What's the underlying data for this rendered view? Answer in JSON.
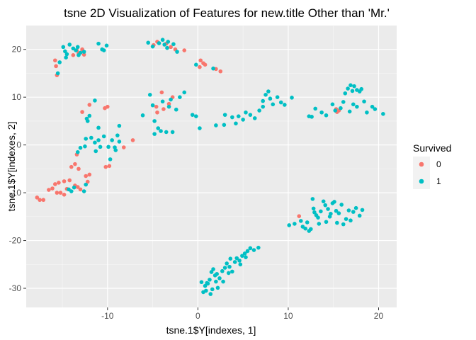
{
  "chart_data": {
    "type": "scatter",
    "title": "tsne 2D Visualization of Features for new.title Other than 'Mr.'",
    "xlabel": "tsne.1$Y[indexes, 1]",
    "ylabel": "tsne.1$Y[indexes, 2]",
    "xlim": [
      -19,
      22
    ],
    "ylim": [
      -34,
      25
    ],
    "x_ticks": [
      -10,
      0,
      10,
      20
    ],
    "x_tick_labels": [
      "-10",
      "0",
      "10",
      "20"
    ],
    "y_ticks": [
      -30,
      -20,
      -10,
      0,
      10,
      20
    ],
    "y_tick_labels": [
      "-30",
      "-20",
      "-10",
      "0",
      "10",
      "20"
    ],
    "grid": true,
    "legend": {
      "title": "Survived",
      "position": "right",
      "entries": [
        {
          "label": "0",
          "color": "#F8766D"
        },
        {
          "label": "1",
          "color": "#00BFC4"
        }
      ]
    },
    "series": [
      {
        "name": "0",
        "color": "#F8766D",
        "points": [
          [
            -15.8,
            17.7
          ],
          [
            -15.7,
            16.5
          ],
          [
            -15.6,
            14.6
          ],
          [
            -13.4,
            19.8
          ],
          [
            -13.2,
            19.2
          ],
          [
            -12.8,
            20.0
          ],
          [
            -12.6,
            18.9
          ],
          [
            -13.8,
            18.8
          ],
          [
            -4.5,
            21.6
          ],
          [
            -3.5,
            21.2
          ],
          [
            -3.0,
            20.5
          ],
          [
            -4.9,
            20.9
          ],
          [
            -2.5,
            20.0
          ],
          [
            -1.5,
            19.8
          ],
          [
            0.3,
            17.7
          ],
          [
            0.6,
            17.1
          ],
          [
            0.8,
            16.8
          ],
          [
            0.2,
            16.3
          ],
          [
            2.0,
            15.9
          ],
          [
            2.5,
            15.4
          ],
          [
            -12.0,
            8.4
          ],
          [
            -12.8,
            6.9
          ],
          [
            -10.0,
            8.0
          ],
          [
            -10.3,
            7.7
          ],
          [
            -4.0,
            11.0
          ],
          [
            -3.2,
            8.6
          ],
          [
            -4.6,
            8.0
          ],
          [
            -3.8,
            7.5
          ],
          [
            -4.5,
            6.8
          ],
          [
            -2.8,
            10.0
          ],
          [
            -7.2,
            1.0
          ],
          [
            -8.2,
            -0.5
          ],
          [
            -9.8,
            -4.4
          ],
          [
            -10.2,
            -4.6
          ],
          [
            -13.4,
            -2.0
          ],
          [
            -13.6,
            -4.0
          ],
          [
            -14.0,
            -4.6
          ],
          [
            -13.2,
            -5.0
          ],
          [
            -17.8,
            -11.0
          ],
          [
            -17.5,
            -11.5
          ],
          [
            -17.1,
            -11.5
          ],
          [
            -16.5,
            -9.4
          ],
          [
            -16.1,
            -9.1
          ],
          [
            -15.8,
            -8.2
          ],
          [
            -15.4,
            -7.9
          ],
          [
            -15.2,
            -10.0
          ],
          [
            -14.8,
            -10.4
          ],
          [
            -14.5,
            -9.2
          ],
          [
            -14.8,
            -7.6
          ],
          [
            -14.2,
            -7.4
          ],
          [
            -13.6,
            -8.5
          ],
          [
            -13.3,
            -8.8
          ],
          [
            -13.0,
            -9.3
          ],
          [
            -12.4,
            -6.5
          ],
          [
            -12.2,
            -7.7
          ],
          [
            -12.0,
            -6.2
          ],
          [
            -15.6,
            -10.0
          ],
          [
            11.2,
            -14.9
          ],
          [
            15.3,
            7.5
          ],
          [
            15.6,
            7.2
          ],
          [
            15.4,
            6.9
          ]
        ]
      },
      {
        "name": "1",
        "color": "#00BFC4",
        "points": [
          [
            -15.5,
            15.0
          ],
          [
            -15.3,
            17.3
          ],
          [
            -14.9,
            20.5
          ],
          [
            -14.7,
            19.6
          ],
          [
            -14.5,
            19.0
          ],
          [
            -14.2,
            21.0
          ],
          [
            -13.8,
            20.2
          ],
          [
            -13.5,
            19.8
          ],
          [
            -13.3,
            20.5
          ],
          [
            -13.0,
            19.3
          ],
          [
            -12.6,
            19.5
          ],
          [
            -13.2,
            18.8
          ],
          [
            -11.0,
            21.2
          ],
          [
            -10.6,
            20.0
          ],
          [
            -10.4,
            19.8
          ],
          [
            -10.1,
            20.8
          ],
          [
            -14.6,
            18.3
          ],
          [
            -5.5,
            21.4
          ],
          [
            -5.0,
            20.6
          ],
          [
            -4.3,
            21.3
          ],
          [
            -3.9,
            22.0
          ],
          [
            -3.7,
            21.0
          ],
          [
            -3.3,
            21.6
          ],
          [
            -2.7,
            21.1
          ],
          [
            -2.3,
            19.5
          ],
          [
            -3.4,
            20.3
          ],
          [
            1.7,
            16.0
          ],
          [
            -0.2,
            16.8
          ],
          [
            -12.2,
            5.0
          ],
          [
            -12.3,
            5.5
          ],
          [
            -12.0,
            6.1
          ],
          [
            -11.4,
            9.3
          ],
          [
            -11.0,
            3.6
          ],
          [
            -12.4,
            1.3
          ],
          [
            -11.8,
            1.5
          ],
          [
            -11.4,
            0.5
          ],
          [
            -11.0,
            1.0
          ],
          [
            -12.5,
            -0.3
          ],
          [
            -13.0,
            -0.6
          ],
          [
            -13.3,
            -1.5
          ],
          [
            -11.3,
            -1.3
          ],
          [
            -10.8,
            -0.4
          ],
          [
            -9.5,
            1.0
          ],
          [
            -9.9,
            -0.4
          ],
          [
            -9.2,
            -0.5
          ],
          [
            -8.7,
            0.7
          ],
          [
            -9.1,
            -1.1
          ],
          [
            -10.4,
            1.8
          ],
          [
            -9.7,
            -3.0
          ],
          [
            -8.9,
            2.0
          ],
          [
            -8.7,
            4.0
          ],
          [
            -14.3,
            -9.3
          ],
          [
            -13.7,
            -8.9
          ],
          [
            -12.4,
            -8.3
          ],
          [
            -12.6,
            -9.7
          ],
          [
            -14.0,
            -9.7
          ],
          [
            -6.1,
            6.2
          ],
          [
            -5.3,
            10.5
          ],
          [
            -5.0,
            8.3
          ],
          [
            -4.8,
            5.0
          ],
          [
            -4.4,
            3.5
          ],
          [
            -4.8,
            2.3
          ],
          [
            -4.1,
            2.9
          ],
          [
            -3.5,
            2.7
          ],
          [
            -2.8,
            2.7
          ],
          [
            -3.9,
            9.1
          ],
          [
            -3.2,
            8.0
          ],
          [
            -3.0,
            9.5
          ],
          [
            -2.0,
            10.0
          ],
          [
            -1.5,
            11.0
          ],
          [
            -2.4,
            7.4
          ],
          [
            -0.6,
            6.3
          ],
          [
            -0.2,
            6.0
          ],
          [
            0.2,
            3.5
          ],
          [
            2.0,
            4.1
          ],
          [
            2.9,
            4.2
          ],
          [
            3.0,
            6.3
          ],
          [
            3.8,
            5.8
          ],
          [
            4.5,
            6.0
          ],
          [
            4.2,
            4.5
          ],
          [
            5.0,
            5.3
          ],
          [
            5.3,
            6.8
          ],
          [
            5.8,
            6.3
          ],
          [
            6.3,
            5.6
          ],
          [
            6.8,
            7.2
          ],
          [
            7.2,
            9.2
          ],
          [
            7.5,
            10.5
          ],
          [
            7.8,
            11.2
          ],
          [
            8.0,
            9.7
          ],
          [
            8.3,
            8.5
          ],
          [
            8.8,
            10.0
          ],
          [
            9.2,
            8.9
          ],
          [
            9.6,
            8.4
          ],
          [
            10.4,
            9.9
          ],
          [
            7.2,
            8.0
          ],
          [
            12.3,
            6.0
          ],
          [
            12.6,
            5.9
          ],
          [
            13.0,
            7.6
          ],
          [
            13.7,
            6.8
          ],
          [
            14.2,
            6.2
          ],
          [
            14.9,
            8.5
          ],
          [
            15.2,
            7.2
          ],
          [
            15.8,
            7.7
          ],
          [
            16.1,
            9.0
          ],
          [
            16.3,
            10.8
          ],
          [
            16.6,
            11.8
          ],
          [
            16.9,
            12.5
          ],
          [
            17.1,
            11.3
          ],
          [
            17.3,
            12.3
          ],
          [
            17.6,
            11.5
          ],
          [
            17.9,
            11.2
          ],
          [
            18.1,
            11.7
          ],
          [
            17.2,
            8.5
          ],
          [
            17.6,
            8.0
          ],
          [
            18.4,
            9.1
          ],
          [
            18.7,
            6.8
          ],
          [
            19.3,
            8.0
          ],
          [
            19.6,
            7.5
          ],
          [
            20.5,
            6.5
          ],
          [
            16.8,
            7.0
          ],
          [
            10.1,
            -16.8
          ],
          [
            10.7,
            -16.5
          ],
          [
            11.4,
            -15.9
          ],
          [
            11.6,
            -17.1
          ],
          [
            11.9,
            -17.5
          ],
          [
            12.1,
            -16.2
          ],
          [
            12.3,
            -18.0
          ],
          [
            12.5,
            -17.6
          ],
          [
            12.8,
            -13.3
          ],
          [
            12.7,
            -11.3
          ],
          [
            13.1,
            -14.7
          ],
          [
            13.3,
            -15.2
          ],
          [
            13.6,
            -13.9
          ],
          [
            13.9,
            -11.8
          ],
          [
            14.1,
            -12.6
          ],
          [
            14.4,
            -13.4
          ],
          [
            14.6,
            -15.0
          ],
          [
            14.9,
            -12.2
          ],
          [
            15.1,
            -11.9
          ],
          [
            15.3,
            -13.8
          ],
          [
            15.6,
            -14.3
          ],
          [
            15.9,
            -12.5
          ],
          [
            16.1,
            -16.6
          ],
          [
            16.4,
            -15.5
          ],
          [
            16.7,
            -13.7
          ],
          [
            16.9,
            -15.8
          ],
          [
            17.2,
            -14.0
          ],
          [
            17.5,
            -13.2
          ],
          [
            17.9,
            -14.8
          ],
          [
            18.2,
            -13.6
          ],
          [
            15.4,
            -16.3
          ],
          [
            14.2,
            -16.1
          ],
          [
            13.4,
            -16.5
          ],
          [
            12.9,
            -14.1
          ],
          [
            14.7,
            -14.4
          ],
          [
            0.4,
            -28.7
          ],
          [
            0.6,
            -30.8
          ],
          [
            0.9,
            -30.5
          ],
          [
            1.1,
            -29.0
          ],
          [
            1.3,
            -28.2
          ],
          [
            1.5,
            -26.6
          ],
          [
            1.7,
            -26.0
          ],
          [
            1.9,
            -27.3
          ],
          [
            2.0,
            -28.6
          ],
          [
            2.2,
            -29.9
          ],
          [
            2.4,
            -27.9
          ],
          [
            2.7,
            -26.4
          ],
          [
            3.0,
            -25.7
          ],
          [
            3.2,
            -24.8
          ],
          [
            3.5,
            -25.5
          ],
          [
            3.8,
            -26.5
          ],
          [
            4.1,
            -24.5
          ],
          [
            4.3,
            -23.7
          ],
          [
            4.6,
            -24.2
          ],
          [
            4.9,
            -23.2
          ],
          [
            5.2,
            -22.7
          ],
          [
            5.5,
            -22.2
          ],
          [
            5.8,
            -21.6
          ],
          [
            6.2,
            -22.0
          ],
          [
            6.7,
            -21.5
          ],
          [
            1.4,
            -31.2
          ],
          [
            1.6,
            -30.2
          ],
          [
            2.1,
            -27.0
          ],
          [
            4.7,
            -25.0
          ],
          [
            3.6,
            -23.8
          ],
          [
            2.8,
            -28.6
          ],
          [
            1.0,
            -28.9
          ],
          [
            0.8,
            -29.5
          ],
          [
            5.3,
            -23.5
          ],
          [
            3.4,
            -26.8
          ]
        ]
      }
    ]
  }
}
